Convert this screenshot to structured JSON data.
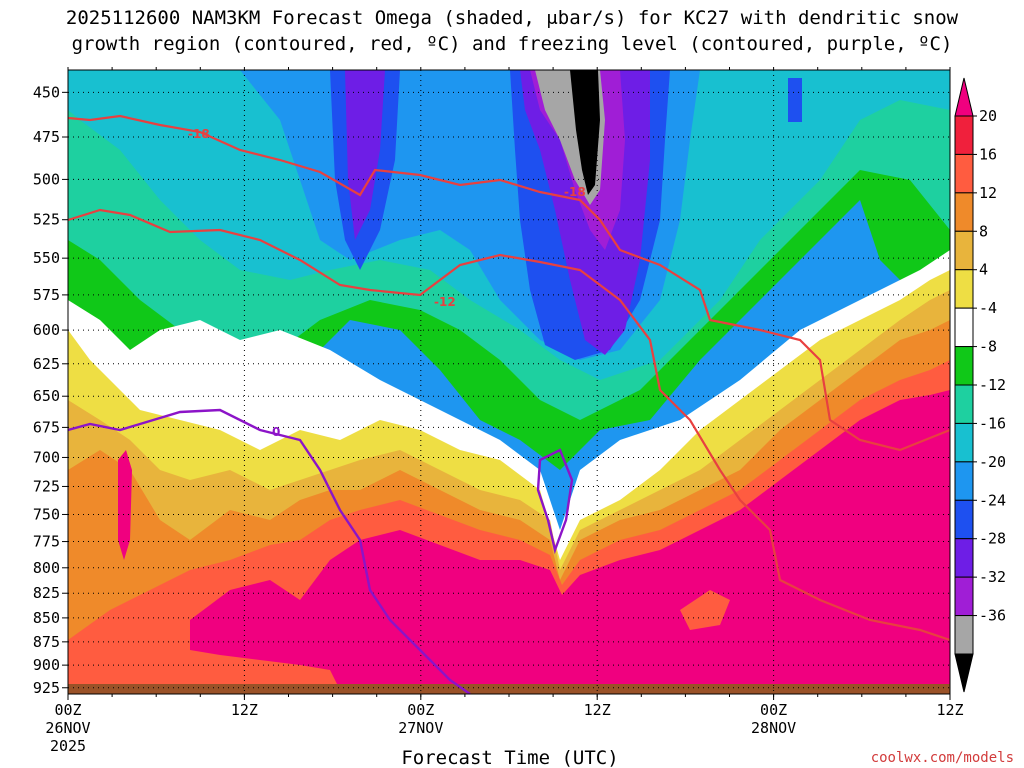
{
  "title_lines": [
    "2025112600 NAM3KM Forecast Omega (shaded, μbar/s) for KC27 with dendritic snow",
    "growth region (contoured, red, ºC) and freezing level (contoured, purple, ºC)"
  ],
  "credit": "coolwx.com/models",
  "chart_data": {
    "type": "heatmap",
    "title": "2025112600 NAM3KM Forecast Omega (shaded, μbar/s) for KC27 with dendritic snow growth region (contoured, red, ºC) and freezing level (contoured, purple, ºC)",
    "xlabel": "Forecast Time (UTC)",
    "ylabel": "",
    "x_ticks": [
      {
        "hour": 0,
        "lines": [
          "00Z",
          "26NOV",
          "2025"
        ]
      },
      {
        "hour": 12,
        "lines": [
          "12Z"
        ]
      },
      {
        "hour": 24,
        "lines": [
          "00Z",
          "27NOV"
        ]
      },
      {
        "hour": 36,
        "lines": [
          "12Z"
        ]
      },
      {
        "hour": 48,
        "lines": [
          "00Z",
          "28NOV"
        ]
      },
      {
        "hour": 60,
        "lines": [
          "12Z"
        ]
      }
    ],
    "xlim": [
      0,
      60
    ],
    "y_ticks": [
      "450",
      "475",
      "500",
      "525",
      "550",
      "575",
      "600",
      "625",
      "650",
      "675",
      "700",
      "725",
      "750",
      "775",
      "800",
      "825",
      "850",
      "875",
      "900",
      "925"
    ],
    "ylim": [
      438,
      932
    ],
    "y_scale": "log-pressure, inverted",
    "grid": true,
    "colorbar": {
      "labels": [
        "20",
        "16",
        "12",
        "8",
        "4",
        "-4",
        "-8",
        "-12",
        "-16",
        "-20",
        "-24",
        "-28",
        "-32",
        "-36"
      ],
      "colors": [
        "#f0007f",
        "#f0203c",
        "#ff5c40",
        "#ef8a2a",
        "#e8b43c",
        "#eede44",
        "#ffffff",
        "#10c818",
        "#1ed0a0",
        "#18c0d0",
        "#1e96f0",
        "#1e50f0",
        "#6e1ee6",
        "#a01ed6",
        "#a6a6a6",
        "#000000"
      ]
    },
    "contours": [
      {
        "label": "-18",
        "color": "#e84040",
        "level": -18
      },
      {
        "label": "-12",
        "color": "#e84040",
        "level": -12
      },
      {
        "label": "0",
        "color": "#8c14c8",
        "level": 0
      }
    ],
    "terrain_color": "#9a5228",
    "omega_field_summary": {
      "low_level_max": 20,
      "upper_level_min": -36
    }
  }
}
